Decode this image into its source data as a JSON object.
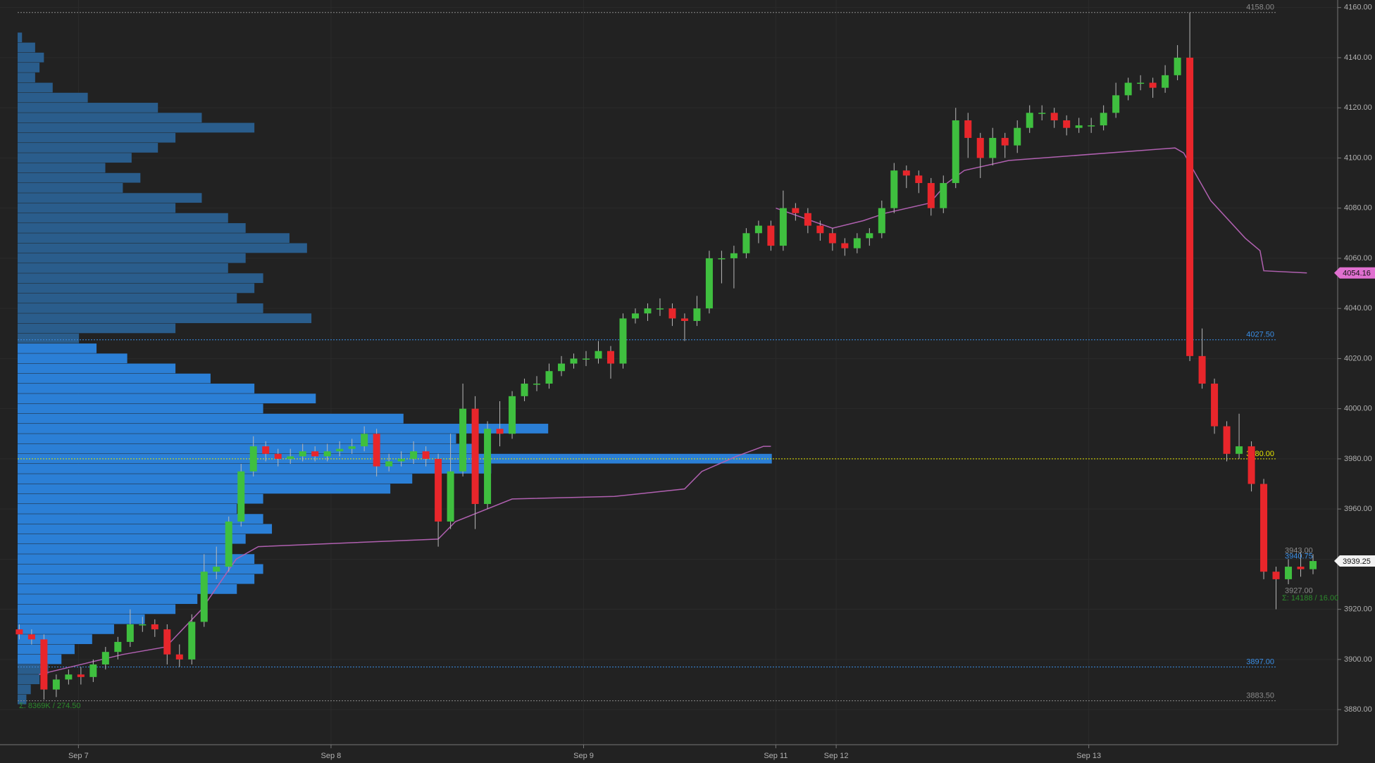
{
  "chart_data": {
    "type": "candlestick",
    "up_color": "#3fbf3f",
    "down_color": "#e8262b",
    "wick_color": "#b8b8b8",
    "grid": true,
    "xlim": [
      -1.566,
      107
    ],
    "ylim": [
      3866,
      4163
    ],
    "xticks": [
      {
        "value": 4.8,
        "label": "Sep 7"
      },
      {
        "value": 25.3,
        "label": "Sep 8"
      },
      {
        "value": 45.8,
        "label": "Sep 9"
      },
      {
        "value": 61.4,
        "label": "Sep 11"
      },
      {
        "value": 66.3,
        "label": "Sep 12"
      },
      {
        "value": 86.8,
        "label": "Sep 13"
      }
    ],
    "yticks": [
      {
        "value": 3880,
        "label": "3880.00"
      },
      {
        "value": 3900,
        "label": "3900.00"
      },
      {
        "value": 3920,
        "label": "3920.00"
      },
      {
        "value": 3940,
        "label": "3940.00"
      },
      {
        "value": 3960,
        "label": "3960.00"
      },
      {
        "value": 3980,
        "label": "3980.00"
      },
      {
        "value": 4000,
        "label": "4000.00"
      },
      {
        "value": 4020,
        "label": "4020.00"
      },
      {
        "value": 4040,
        "label": "4040.00"
      },
      {
        "value": 4060,
        "label": "4060.00"
      },
      {
        "value": 4080,
        "label": "4080.00"
      },
      {
        "value": 4100,
        "label": "4100.00"
      },
      {
        "value": 4120,
        "label": "4120.00"
      },
      {
        "value": 4140,
        "label": "4140.00"
      },
      {
        "value": 4160,
        "label": "4160.00"
      }
    ],
    "x": [
      0,
      1,
      2,
      3,
      4,
      5,
      6,
      7,
      8,
      9,
      10,
      11,
      12,
      13,
      14,
      15,
      16,
      17,
      18,
      19,
      20,
      21,
      22,
      23,
      24,
      25,
      26,
      27,
      28,
      29,
      30,
      31,
      32,
      33,
      34,
      35,
      36,
      37,
      38,
      39,
      40,
      41,
      42,
      43,
      44,
      45,
      46,
      47,
      48,
      49,
      50,
      51,
      52,
      53,
      54,
      55,
      56,
      57,
      58,
      59,
      60,
      61,
      62,
      63,
      64,
      65,
      66,
      67,
      68,
      69,
      70,
      71,
      72,
      73,
      74,
      75,
      76,
      77,
      78,
      79,
      80,
      81,
      82,
      83,
      84,
      85,
      86,
      87,
      88,
      89,
      90,
      91,
      92,
      93,
      94,
      95,
      96,
      97,
      98,
      99,
      100,
      101,
      102,
      103,
      104,
      105
    ],
    "open": [
      3912,
      3910,
      3908,
      3888,
      3892,
      3894,
      3893,
      3898,
      3903,
      3907,
      3914,
      3914,
      3912,
      3902,
      3900,
      3915,
      3935,
      3937,
      3955,
      3975,
      3985,
      3982,
      3980,
      3981,
      3983,
      3981,
      3983,
      3984,
      3985,
      3990,
      3977,
      3979,
      3980,
      3983,
      3980,
      3955,
      3975,
      4000,
      3962,
      3992,
      3990,
      4005,
      4010,
      4010,
      4015,
      4018,
      4020,
      4020,
      4023,
      4018,
      4036,
      4038,
      4040,
      4040,
      4036,
      4035,
      4040,
      4060,
      4060,
      4062,
      4070,
      4073,
      4065,
      4080,
      4078,
      4073,
      4070,
      4066,
      4064,
      4068,
      4070,
      4080,
      4095,
      4093,
      4090,
      4080,
      4090,
      4115,
      4108,
      4100,
      4108,
      4105,
      4112,
      4118,
      4118,
      4115,
      4112,
      4113,
      4113,
      4118,
      4125,
      4130,
      4130,
      4128,
      4133,
      4140,
      4021,
      4010,
      3993,
      3982,
      3985,
      3970,
      3935,
      3932,
      3937,
      3936
    ],
    "high": [
      3914,
      3912,
      3910,
      3894,
      3896,
      3897,
      3900,
      3905,
      3909,
      3920,
      3917,
      3916,
      3914,
      3906,
      3918,
      3942,
      3945,
      3957,
      3978,
      3989,
      3987,
      3984,
      3984,
      3986,
      3985,
      3986,
      3987,
      3988,
      3993,
      3992,
      3982,
      3983,
      3987,
      3985,
      3982,
      3990,
      4010,
      4005,
      3995,
      4003,
      4007,
      4012,
      4013,
      4018,
      4021,
      4022,
      4023,
      4027,
      4025,
      4038,
      4040,
      4042,
      4044,
      4042,
      4038,
      4045,
      4063,
      4063,
      4065,
      4072,
      4075,
      4075,
      4087,
      4082,
      4080,
      4075,
      4072,
      4068,
      4070,
      4072,
      4083,
      4098,
      4097,
      4095,
      4092,
      4093,
      4120,
      4118,
      4110,
      4112,
      4110,
      4115,
      4121,
      4121,
      4120,
      4117,
      4116,
      4116,
      4121,
      4130,
      4132,
      4133,
      4132,
      4137,
      4145,
      4158,
      4032,
      4012,
      3995,
      3998,
      3987,
      3972,
      3937,
      3940,
      3943,
      3942
    ],
    "low": [
      3908,
      3906,
      3884,
      3885,
      3890,
      3890,
      3891,
      3896,
      3900,
      3905,
      3911,
      3909,
      3898,
      3897,
      3898,
      3913,
      3932,
      3935,
      3953,
      3973,
      3979,
      3977,
      3978,
      3979,
      3979,
      3979,
      3981,
      3982,
      3983,
      3973,
      3975,
      3977,
      3978,
      3977,
      3945,
      3952,
      3973,
      3952,
      3960,
      3985,
      3988,
      4003,
      4007,
      4008,
      4013,
      4016,
      4017,
      4018,
      4012,
      4016,
      4034,
      4035,
      4037,
      4033,
      4027,
      4033,
      4038,
      4050,
      4048,
      4060,
      4066,
      4063,
      4063,
      4075,
      4070,
      4067,
      4063,
      4061,
      4062,
      4065,
      4068,
      4078,
      4088,
      4086,
      4077,
      4078,
      4088,
      4100,
      4092,
      4097,
      4100,
      4102,
      4110,
      4115,
      4112,
      4109,
      4110,
      4110,
      4111,
      4116,
      4123,
      4127,
      4124,
      4126,
      4131,
      4019,
      4008,
      3990,
      3979,
      3980,
      3967,
      3932,
      3920,
      3930,
      3933,
      3934
    ],
    "close": [
      3910,
      3908,
      3888,
      3892,
      3894,
      3893,
      3898,
      3903,
      3907,
      3914,
      3914,
      3912,
      3902,
      3900,
      3915,
      3935,
      3937,
      3955,
      3975,
      3985,
      3982,
      3980,
      3981,
      3983,
      3981,
      3983,
      3984,
      3985,
      3990,
      3977,
      3979,
      3980,
      3983,
      3980,
      3955,
      3975,
      4000,
      3962,
      3992,
      3990,
      4005,
      4010,
      4010,
      4015,
      4018,
      4020,
      4020,
      4023,
      4018,
      4036,
      4038,
      4040,
      4040,
      4036,
      4035,
      4040,
      4060,
      4060,
      4062,
      4070,
      4073,
      4065,
      4080,
      4078,
      4073,
      4070,
      4066,
      4064,
      4068,
      4070,
      4080,
      4095,
      4093,
      4090,
      4080,
      4090,
      4115,
      4108,
      4100,
      4108,
      4105,
      4112,
      4118,
      4118,
      4115,
      4112,
      4113,
      4113,
      4118,
      4125,
      4130,
      4130,
      4128,
      4133,
      4140,
      4021,
      4010,
      3993,
      3982,
      3985,
      3970,
      3935,
      3932,
      3937,
      3936,
      3939.25
    ],
    "vwap": {
      "color": "#b060b0",
      "x": [
        1.6,
        8.4,
        11.9,
        14.8,
        17.6,
        19.4,
        34,
        35.4,
        40,
        48.3,
        54,
        55.4,
        58.2,
        60.4,
        61,
        null,
        61.4,
        66,
        68.5,
        70.3,
        73.9,
        75.3,
        76.7,
        80.3,
        93.8,
        94.5,
        96.7,
        99.5,
        100.7,
        101,
        104.5
      ],
      "values": [
        3894,
        3902,
        3905,
        3920,
        3940,
        3945,
        3948,
        3955,
        3964,
        3965,
        3968,
        3975,
        3981,
        3985,
        3985,
        null,
        4080,
        4072,
        4075,
        4078,
        4082,
        4090,
        4095,
        4099,
        4104,
        4102,
        4083,
        4068,
        4063,
        4055,
        4054.16
      ]
    },
    "profile": {
      "value_area_color": "#2b7fd6",
      "outside_color": "#2a5d8c",
      "prices": [
        4148,
        4144,
        4140,
        4136,
        4132,
        4128,
        4124,
        4120,
        4116,
        4112,
        4108,
        4104,
        4100,
        4096,
        4092,
        4088,
        4084,
        4080,
        4076,
        4072,
        4068,
        4064,
        4060,
        4056,
        4052,
        4048,
        4044,
        4040,
        4036,
        4032,
        4028,
        4024,
        4020,
        4016,
        4012,
        4008,
        4004,
        4000,
        3996,
        3992,
        3988,
        3984,
        3980,
        3976,
        3972,
        3968,
        3964,
        3960,
        3956,
        3952,
        3948,
        3944,
        3940,
        3936,
        3932,
        3928,
        3924,
        3920,
        3916,
        3912,
        3908,
        3904,
        3900,
        3896,
        3892,
        3888,
        3884
      ],
      "values": [
        5,
        20,
        30,
        25,
        20,
        40,
        80,
        160,
        210,
        270,
        180,
        160,
        130,
        100,
        140,
        120,
        210,
        180,
        240,
        260,
        310,
        330,
        260,
        240,
        280,
        270,
        250,
        280,
        335,
        180,
        70,
        90,
        125,
        180,
        220,
        270,
        340,
        280,
        440,
        605,
        500,
        520,
        860,
        540,
        450,
        425,
        280,
        250,
        280,
        290,
        260,
        240,
        270,
        280,
        270,
        250,
        205,
        180,
        145,
        110,
        85,
        65,
        50,
        35,
        25,
        15,
        10
      ]
    },
    "levels": [
      {
        "value": 4158,
        "label": "4158.00",
        "color": "#8a8a8a"
      },
      {
        "value": 4027.5,
        "label": "4027.50",
        "color": "#3a8ee6"
      },
      {
        "value": 3980,
        "label": "3980.00",
        "color": "#e6e600"
      },
      {
        "value": 3897,
        "label": "3897.00",
        "color": "#3a8ee6"
      },
      {
        "value": 3883.5,
        "label": "3883.50",
        "color": "#8a8a8a"
      }
    ],
    "markers": [
      {
        "value": 4054.16,
        "color": "#e070d0"
      },
      {
        "value": 3939.25,
        "color": "#f2f2f2"
      }
    ],
    "bar_labels": [
      {
        "value": 3943,
        "label": "3943.00",
        "color": "#8a8a8a"
      },
      {
        "value": 3940.75,
        "label": "3940.75",
        "color": "#3a8ee6"
      },
      {
        "value": 3927,
        "label": "3927.00",
        "color": "#8a8a8a"
      }
    ],
    "summaries": [
      "Σ: 8369K / 274.50",
      "Σ: 14188 / 16.00"
    ]
  }
}
